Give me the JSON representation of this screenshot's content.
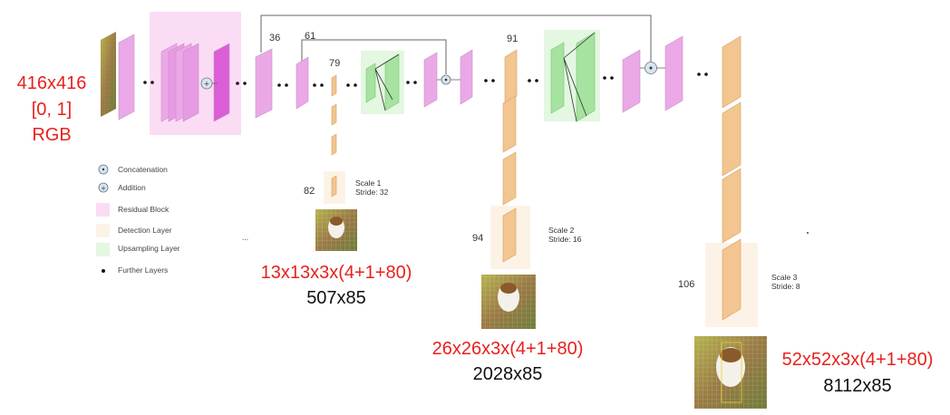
{
  "input": {
    "size": "416x416",
    "range": "[0, 1]",
    "colorspace": "RGB"
  },
  "layer_indices": {
    "l36": "36",
    "l61": "61",
    "l79": "79",
    "l82": "82",
    "l91": "91",
    "l94": "94",
    "l106": "106"
  },
  "scales": {
    "s1": {
      "title": "Scale 1",
      "stride": "Stride: 32",
      "shape": "13x13x3x(4+1+80)",
      "flat": "507x85"
    },
    "s2": {
      "title": "Scale 2",
      "stride": "Stride: 16",
      "shape": "26x26x3x(4+1+80)",
      "flat": "2028x85"
    },
    "s3": {
      "title": "Scale 3",
      "stride": "Stride: 8",
      "shape": "52x52x3x(4+1+80)",
      "flat": "8112x85"
    }
  },
  "legend": {
    "concatenation": "Concatenation",
    "addition": "Addition",
    "residual": "Residual Block",
    "detection": "Detection Layer",
    "upsampling": "Upsampling Layer",
    "further": "Further Layers"
  },
  "ellipsis": "...",
  "colors": {
    "red": "#e8211d",
    "residual_fill": "#fbdcf5",
    "detection_fill": "#fcf3e6",
    "upsampling_fill": "#e3f7e1",
    "conv_layer": "#eaa9e6",
    "detection_layer": "#f2c591",
    "upsample_layer": "#a6e2a0"
  }
}
